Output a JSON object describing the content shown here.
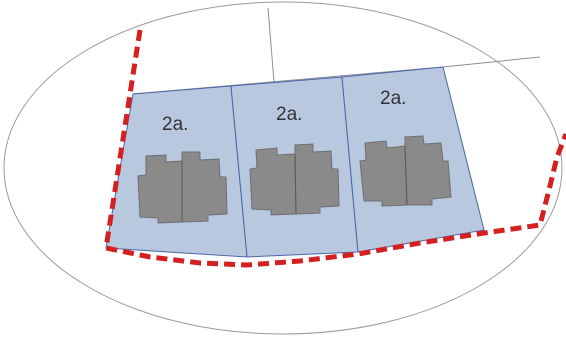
{
  "map": {
    "plots": [
      {
        "label": "2a."
      },
      {
        "label": "2a."
      },
      {
        "label": "2a."
      }
    ],
    "colors": {
      "background": "#ffffff",
      "plot_fill": "#b8c8de",
      "plot_line": "#4a64a8",
      "building_fill": "#8a8a8a",
      "building_line": "#6e6e6e",
      "boundary_dashed": "#d42020",
      "cadastral_line": "#8a8fa0",
      "ellipse_line": "#9a9a9a"
    }
  }
}
